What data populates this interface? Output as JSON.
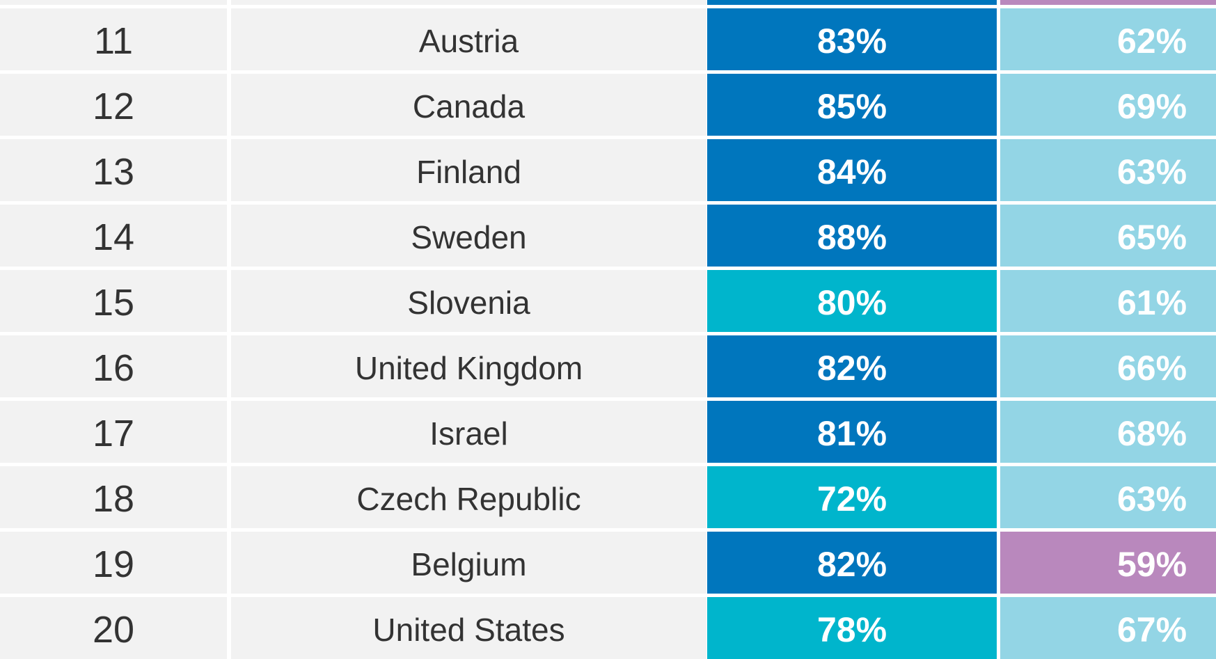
{
  "colors": {
    "background": "#ffffff",
    "label_cell": "#f2f2f2",
    "text_dark": "#333333",
    "text_light": "#ffffff",
    "tier_dark_blue": "#0076bd",
    "tier_teal": "#00b5cc",
    "tier_light_blue": "#93d5e5",
    "tier_purple": "#b988bd"
  },
  "chart_data": {
    "type": "table",
    "columns": [
      "",
      "",
      "",
      ""
    ],
    "rows": [
      {
        "rank": "11",
        "country": "Austria",
        "value_1": "83%",
        "value_1_tier": "tier_dark_blue",
        "value_2": "62%",
        "value_2_tier": "tier_light_blue"
      },
      {
        "rank": "12",
        "country": "Canada",
        "value_1": "85%",
        "value_1_tier": "tier_dark_blue",
        "value_2": "69%",
        "value_2_tier": "tier_light_blue"
      },
      {
        "rank": "13",
        "country": "Finland",
        "value_1": "84%",
        "value_1_tier": "tier_dark_blue",
        "value_2": "63%",
        "value_2_tier": "tier_light_blue"
      },
      {
        "rank": "14",
        "country": "Sweden",
        "value_1": "88%",
        "value_1_tier": "tier_dark_blue",
        "value_2": "65%",
        "value_2_tier": "tier_light_blue"
      },
      {
        "rank": "15",
        "country": "Slovenia",
        "value_1": "80%",
        "value_1_tier": "tier_teal",
        "value_2": "61%",
        "value_2_tier": "tier_light_blue"
      },
      {
        "rank": "16",
        "country": "United Kingdom",
        "value_1": "82%",
        "value_1_tier": "tier_dark_blue",
        "value_2": "66%",
        "value_2_tier": "tier_light_blue"
      },
      {
        "rank": "17",
        "country": "Israel",
        "value_1": "81%",
        "value_1_tier": "tier_dark_blue",
        "value_2": "68%",
        "value_2_tier": "tier_light_blue"
      },
      {
        "rank": "18",
        "country": "Czech Republic",
        "value_1": "72%",
        "value_1_tier": "tier_teal",
        "value_2": "63%",
        "value_2_tier": "tier_light_blue"
      },
      {
        "rank": "19",
        "country": "Belgium",
        "value_1": "82%",
        "value_1_tier": "tier_dark_blue",
        "value_2": "59%",
        "value_2_tier": "tier_purple"
      },
      {
        "rank": "20",
        "country": "United States",
        "value_1": "78%",
        "value_1_tier": "tier_teal",
        "value_2": "67%",
        "value_2_tier": "tier_light_blue"
      }
    ],
    "partial_row_above": {
      "value_1_tier": "tier_dark_blue",
      "value_2_tier": "tier_purple"
    }
  }
}
